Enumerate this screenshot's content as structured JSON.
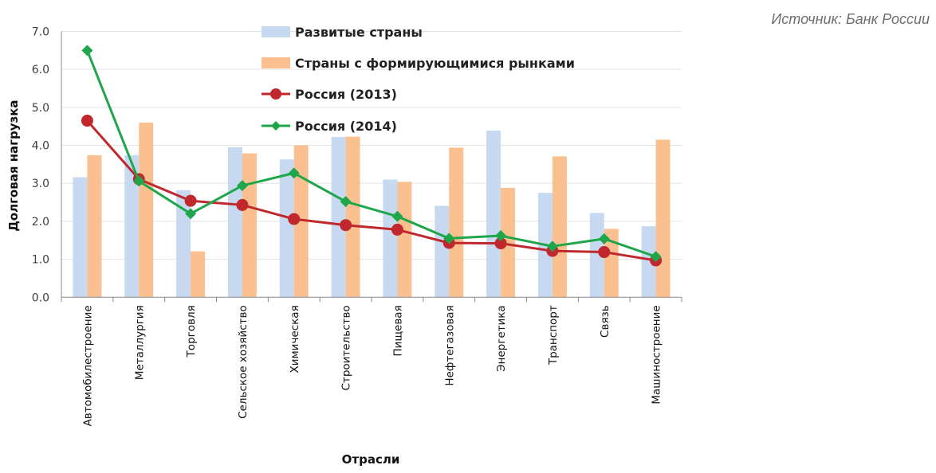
{
  "source": "Источник: Банк России",
  "chart_data": {
    "type": "bar",
    "xlabel": "Отрасли",
    "ylabel": "Долговая нагрузка",
    "ylim": [
      0,
      7
    ],
    "yticks": [
      "0.0",
      "1.0",
      "2.0",
      "3.0",
      "4.0",
      "5.0",
      "6.0",
      "7.0"
    ],
    "grid": true,
    "legend_position": "top-center",
    "categories": [
      "Автомобилестроение",
      "Металлургия",
      "Торговля",
      "Сельское хозяйство",
      "Химическая",
      "Строительство",
      "Пищевая",
      "Нефтегазовая",
      "Энергетика",
      "Транспорт",
      "Связь",
      "Машиностроение"
    ],
    "series": [
      {
        "name": "Развитые страны",
        "type": "bar",
        "color": "#c6d9f1",
        "values": [
          3.16,
          3.74,
          2.82,
          3.95,
          3.63,
          4.22,
          3.1,
          2.41,
          4.39,
          2.75,
          2.22,
          1.87
        ]
      },
      {
        "name": "Страны с формирующимися рынками",
        "type": "bar",
        "color": "#fac090",
        "values": [
          3.74,
          4.6,
          1.21,
          3.79,
          4.0,
          4.23,
          3.04,
          3.94,
          2.88,
          3.71,
          1.8,
          4.15
        ]
      },
      {
        "name": "Россия (2013)",
        "type": "line",
        "marker": "circle",
        "color": "#c0282d",
        "values": [
          4.65,
          3.11,
          2.54,
          2.43,
          2.06,
          1.9,
          1.78,
          1.43,
          1.42,
          1.22,
          1.19,
          0.97
        ]
      },
      {
        "name": "Россия (2014)",
        "type": "line",
        "marker": "diamond",
        "color": "#1fa64a",
        "values": [
          6.5,
          3.06,
          2.2,
          2.94,
          3.27,
          2.52,
          2.13,
          1.55,
          1.62,
          1.34,
          1.54,
          1.07
        ]
      }
    ]
  }
}
